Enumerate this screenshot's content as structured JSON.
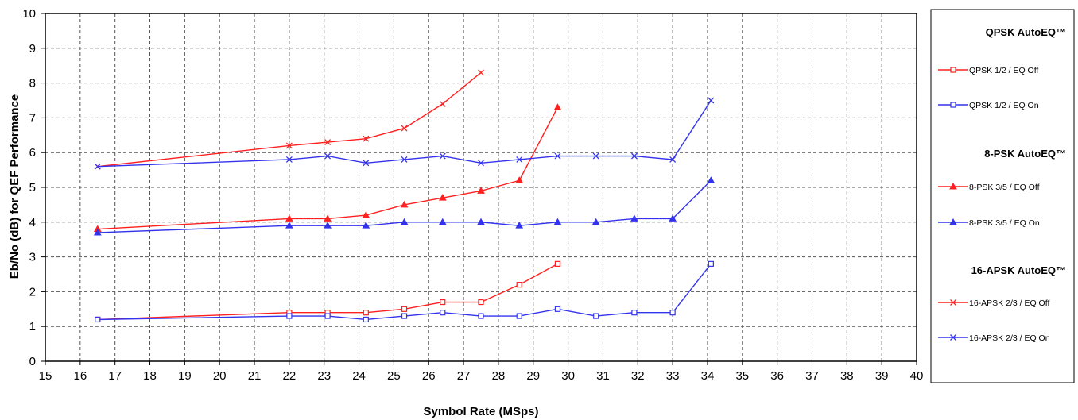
{
  "chart_data": {
    "type": "line",
    "xlabel": "Symbol Rate (MSps)",
    "ylabel": "Eb/No (dB) for QEF Performance",
    "xlim": [
      15,
      40
    ],
    "ylim": [
      0,
      10
    ],
    "xticks": [
      15,
      16,
      17,
      18,
      19,
      20,
      21,
      22,
      23,
      24,
      25,
      26,
      27,
      28,
      29,
      30,
      31,
      32,
      33,
      34,
      35,
      36,
      37,
      38,
      39,
      40
    ],
    "yticks": [
      0,
      1,
      2,
      3,
      4,
      5,
      6,
      7,
      8,
      9,
      10
    ],
    "grid": true,
    "legend_position": "right",
    "legend_groups": [
      {
        "heading": "QPSK AutoEQ™",
        "series": [
          0,
          1
        ]
      },
      {
        "heading": "8-PSK AutoEQ™",
        "series": [
          2,
          3
        ]
      },
      {
        "heading": "16-APSK AutoEQ™",
        "series": [
          4,
          5
        ]
      }
    ],
    "series": [
      {
        "name": "QPSK 1/2 / EQ Off",
        "color": "#ff2020",
        "marker": "square",
        "x": [
          16.5,
          22,
          23.1,
          24.2,
          25.3,
          26.4,
          27.5,
          28.6,
          29.7
        ],
        "y": [
          1.2,
          1.4,
          1.4,
          1.4,
          1.5,
          1.7,
          1.7,
          2.2,
          2.8
        ]
      },
      {
        "name": "QPSK 1/2 / EQ On",
        "color": "#3333ee",
        "marker": "square",
        "x": [
          16.5,
          22,
          23.1,
          24.2,
          25.3,
          26.4,
          27.5,
          28.6,
          29.7,
          30.8,
          31.9,
          33,
          34.1
        ],
        "y": [
          1.2,
          1.3,
          1.3,
          1.2,
          1.3,
          1.4,
          1.3,
          1.3,
          1.5,
          1.3,
          1.4,
          1.4,
          2.8
        ]
      },
      {
        "name": "8-PSK 3/5 / EQ Off",
        "color": "#ff2020",
        "marker": "triangle",
        "x": [
          16.5,
          22,
          23.1,
          24.2,
          25.3,
          26.4,
          27.5,
          28.6,
          29.7
        ],
        "y": [
          3.8,
          4.1,
          4.1,
          4.2,
          4.5,
          4.7,
          4.9,
          5.2,
          7.3
        ]
      },
      {
        "name": "8-PSK 3/5 / EQ On",
        "color": "#3333ee",
        "marker": "triangle",
        "x": [
          16.5,
          22,
          23.1,
          24.2,
          25.3,
          26.4,
          27.5,
          28.6,
          29.7,
          30.8,
          31.9,
          33,
          34.1
        ],
        "y": [
          3.7,
          3.9,
          3.9,
          3.9,
          4.0,
          4.0,
          4.0,
          3.9,
          4.0,
          4.0,
          4.1,
          4.1,
          5.2
        ]
      },
      {
        "name": "16-APSK 2/3 / EQ Off",
        "color": "#ff2020",
        "marker": "x",
        "x": [
          16.5,
          22,
          23.1,
          24.2,
          25.3,
          26.4,
          27.5
        ],
        "y": [
          5.6,
          6.2,
          6.3,
          6.4,
          6.7,
          7.4,
          8.3
        ]
      },
      {
        "name": "16-APSK 2/3 / EQ On",
        "color": "#3333ee",
        "marker": "x",
        "x": [
          16.5,
          22,
          23.1,
          24.2,
          25.3,
          26.4,
          27.5,
          28.6,
          29.7,
          30.8,
          31.9,
          33,
          34.1
        ],
        "y": [
          5.6,
          5.8,
          5.9,
          5.7,
          5.8,
          5.9,
          5.7,
          5.8,
          5.9,
          5.9,
          5.9,
          5.8,
          7.5
        ]
      }
    ]
  }
}
